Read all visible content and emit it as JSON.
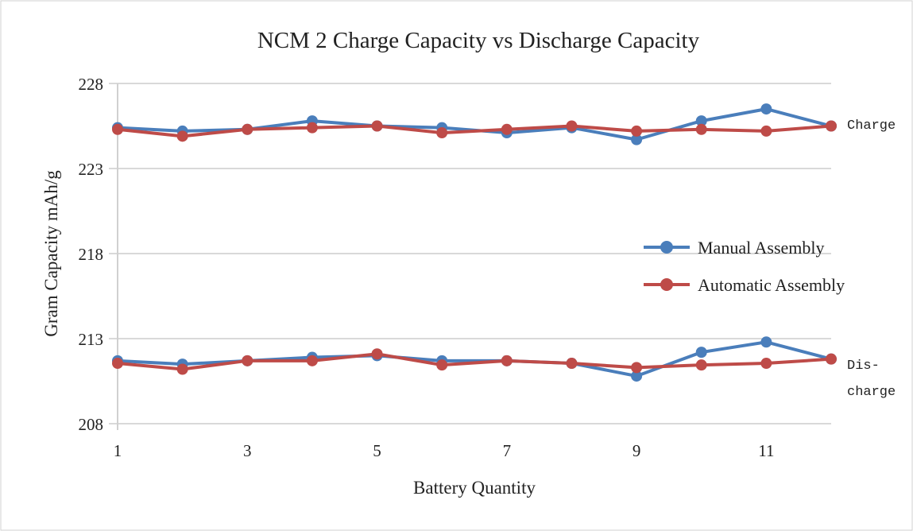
{
  "chart_data": {
    "type": "line",
    "title": "NCM 2 Charge Capacity vs Discharge Capacity",
    "xlabel": "Battery Quantity",
    "ylabel": "Gram Capacity mAh/g",
    "ylim": [
      208,
      228
    ],
    "yticks": [
      "208",
      "213",
      "218",
      "223",
      "228"
    ],
    "xticks": [
      "1",
      "3",
      "5",
      "7",
      "9",
      "11"
    ],
    "x": [
      1,
      2,
      3,
      4,
      5,
      6,
      7,
      8,
      9,
      10,
      11,
      12
    ],
    "grid": true,
    "legend_position": "right",
    "group_labels": {
      "charge": "Charge",
      "discharge_line1": "Dis-",
      "discharge_line2": "charge"
    },
    "series": [
      {
        "name": "Manual Assembly",
        "color": "#4a7ebb",
        "group": "Charge",
        "values": [
          225.4,
          225.2,
          225.3,
          225.8,
          225.5,
          225.4,
          225.1,
          225.4,
          224.7,
          225.8,
          226.5,
          225.5
        ]
      },
      {
        "name": "Automatic Assembly",
        "color": "#be4b48",
        "group": "Charge",
        "values": [
          225.3,
          224.9,
          225.3,
          225.4,
          225.5,
          225.1,
          225.3,
          225.5,
          225.2,
          225.3,
          225.2,
          225.5
        ]
      },
      {
        "name": "Manual Assembly",
        "color": "#4a7ebb",
        "group": "Discharge",
        "values": [
          211.7,
          211.5,
          211.7,
          211.9,
          212.0,
          211.7,
          211.7,
          211.55,
          210.8,
          212.2,
          212.8,
          211.8
        ]
      },
      {
        "name": "Automatic Assembly",
        "color": "#be4b48",
        "group": "Discharge",
        "values": [
          211.55,
          211.2,
          211.7,
          211.7,
          212.1,
          211.45,
          211.7,
          211.55,
          211.3,
          211.45,
          211.55,
          211.8
        ]
      }
    ],
    "legend": [
      {
        "name": "Manual Assembly",
        "color": "#4a7ebb"
      },
      {
        "name": "Automatic Assembly",
        "color": "#be4b48"
      }
    ]
  }
}
